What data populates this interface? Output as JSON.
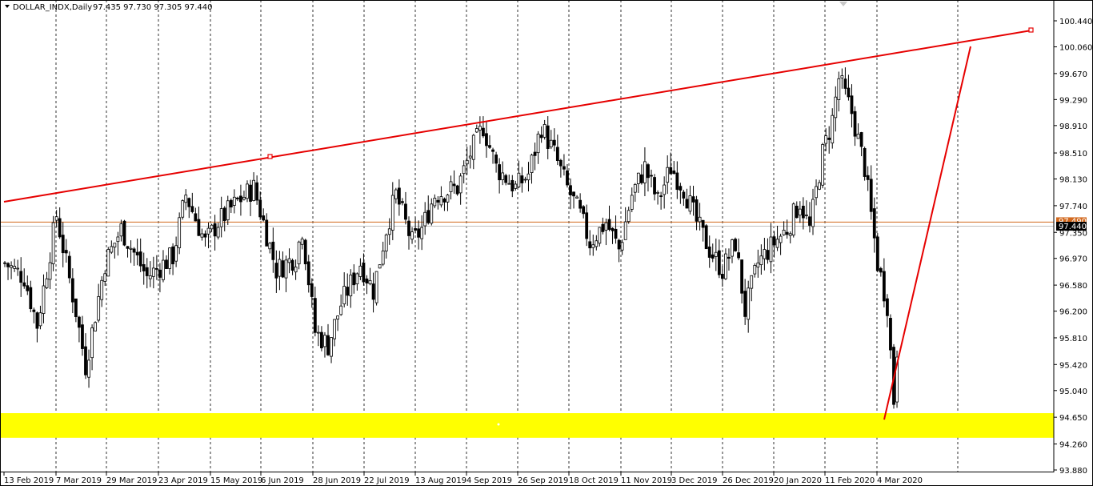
{
  "header": {
    "symbol": "DOLLAR_INDX,Daily",
    "ohlc": "97.435 97.730 97.305 97.440"
  },
  "colors": {
    "background": "#ffffff",
    "candle": "#000000",
    "trendline": "#e60000",
    "support_zone": "#ffff00",
    "price_line": "#c0c0c0",
    "price_label_bg": "#000000",
    "alert_line": "#d2691e",
    "alert_label_bg": "#d2691e"
  },
  "chart_data": {
    "type": "candlestick",
    "title": "DOLLAR_INDX,Daily",
    "y_ticks": [
      "100.440",
      "100.060",
      "99.670",
      "99.290",
      "98.910",
      "98.510",
      "98.130",
      "97.740",
      "97.350",
      "96.970",
      "96.580",
      "96.200",
      "95.810",
      "95.420",
      "95.040",
      "94.650",
      "94.260",
      "93.880"
    ],
    "ylim": [
      93.78,
      100.66
    ],
    "x_ticks": [
      "13 Feb 2019",
      "7 Mar 2019",
      "29 Mar 2019",
      "23 Apr 2019",
      "15 May 2019",
      "6 Jun 2019",
      "28 Jun 2019",
      "22 Jul 2019",
      "13 Aug 2019",
      "4 Sep 2019",
      "26 Sep 2019",
      "18 Oct 2019",
      "11 Nov 2019",
      "3 Dec 2019",
      "26 Dec 2019",
      "20 Jan 2020",
      "11 Feb 2020",
      "4 Mar 2020"
    ],
    "grid": "vertical-dashed",
    "current_price": 97.44,
    "current_price_label": "97.440",
    "alert_price": 97.5,
    "alert_price_label": "97.490",
    "support_zone": [
      94.35,
      94.71
    ],
    "key_closes": [
      {
        "date": "13 Feb 2019",
        "close": 96.9
      },
      {
        "date": "7 Mar 2019",
        "close": 97.6
      },
      {
        "date": "29 Mar 2019",
        "close": 96.7
      },
      {
        "date": "23 Apr 2019",
        "close": 97.9
      },
      {
        "date": "15 May 2019",
        "close": 97.5
      },
      {
        "date": "6 Jun 2019",
        "close": 96.8
      },
      {
        "date": "28 Jun 2019",
        "close": 96.1
      },
      {
        "date": "22 Jul 2019",
        "close": 97.2
      },
      {
        "date": "13 Aug 2019",
        "close": 97.9
      },
      {
        "date": "4 Sep 2019",
        "close": 98.9
      },
      {
        "date": "26 Sep 2019",
        "close": 99.0
      },
      {
        "date": "18 Oct 2019",
        "close": 97.3
      },
      {
        "date": "11 Nov 2019",
        "close": 98.3
      },
      {
        "date": "3 Dec 2019",
        "close": 97.9
      },
      {
        "date": "26 Dec 2019",
        "close": 96.8
      },
      {
        "date": "20 Jan 2020",
        "close": 97.6
      },
      {
        "date": "11 Feb 2020",
        "close": 99.0
      },
      {
        "date": "4 Mar 2020",
        "close": 96.6
      }
    ],
    "trendlines": [
      {
        "from": {
          "date": "13 Feb 2019",
          "price": 97.8
        },
        "to": {
          "date_offset_bars": 145,
          "price": 100.3
        },
        "style": "resistance"
      },
      {
        "from": {
          "date": "4 Mar 2020",
          "price": 94.61
        },
        "to": {
          "date_offset_bars": 11,
          "price": 100.0
        },
        "style": "support"
      }
    ]
  }
}
